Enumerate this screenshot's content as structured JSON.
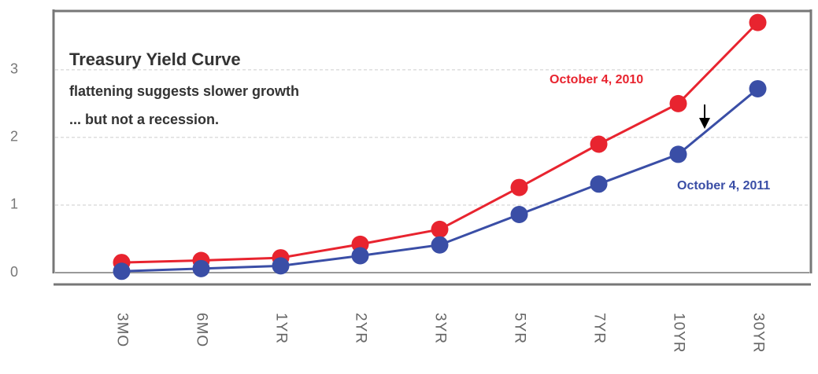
{
  "chart_data": {
    "type": "line",
    "title": "Treasury Yield Curve",
    "subtitle": [
      "flattening suggests slower growth",
      "... but not a  recession."
    ],
    "categories": [
      "3MO",
      "6MO",
      "1YR",
      "2YR",
      "3YR",
      "5YR",
      "7YR",
      "10YR",
      "30YR"
    ],
    "series": [
      {
        "name": "October 4, 2010",
        "color": "#e8242f",
        "values": [
          0.15,
          0.18,
          0.22,
          0.42,
          0.64,
          1.26,
          1.9,
          2.5,
          3.7
        ]
      },
      {
        "name": "October 4, 2011",
        "color": "#3a4ea6",
        "values": [
          0.02,
          0.06,
          0.1,
          0.25,
          0.41,
          0.86,
          1.31,
          1.75,
          2.72
        ]
      }
    ],
    "ylim": [
      0,
      3.87
    ],
    "yticks": [
      0,
      1,
      2,
      3
    ],
    "grid": true
  }
}
